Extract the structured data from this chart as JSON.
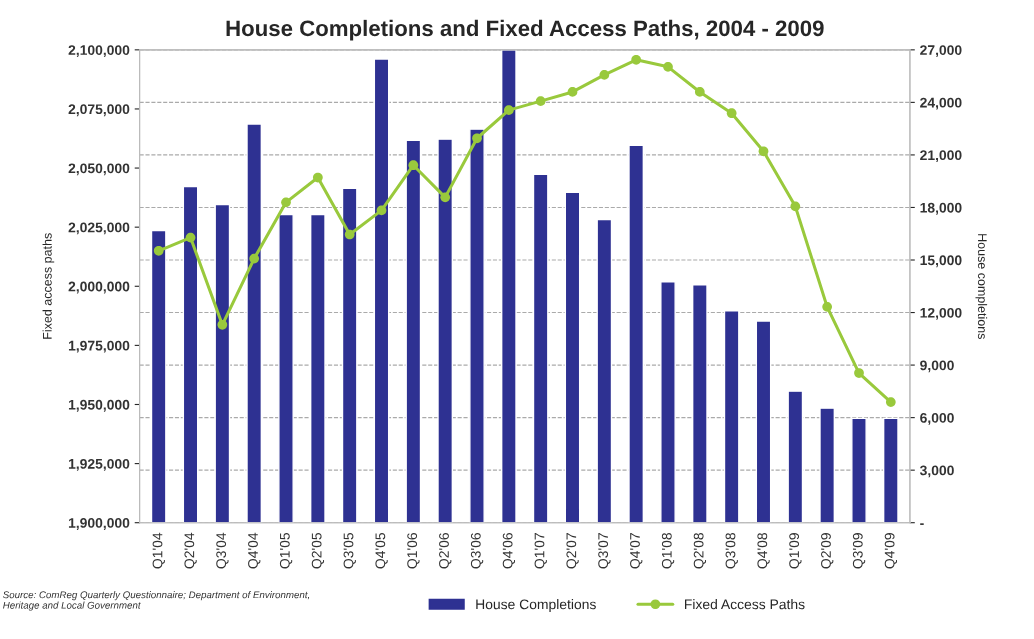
{
  "chart_data": {
    "type": "bar",
    "title": "House Completions and Fixed Access Paths, 2004 - 2009",
    "ylabel": "Fixed access paths",
    "y2label": "House completions",
    "categories": [
      "Q1'04",
      "Q2'04",
      "Q3'04",
      "Q4'04",
      "Q1'05",
      "Q2'05",
      "Q3'05",
      "Q4'05",
      "Q1'06",
      "Q2'06",
      "Q3'06",
      "Q4'06",
      "Q1'07",
      "Q2'07",
      "Q3'07",
      "Q4'07",
      "Q1'08",
      "Q2'08",
      "Q3'08",
      "Q4'08",
      "Q1'09",
      "Q2'09",
      "Q3'09",
      "Q4'09"
    ],
    "series": [
      {
        "name": "House Completions",
        "axis": "y2",
        "color": "#2e3192",
        "values": [
          16680,
          19200,
          18170,
          22760,
          17600,
          17600,
          19090,
          26480,
          21840,
          21900,
          22470,
          27000,
          19890,
          18860,
          17310,
          21550,
          13760,
          13590,
          12100,
          11520,
          7510,
          6540,
          5960,
          5960
        ]
      },
      {
        "name": "Fixed Access Paths",
        "type": "line",
        "axis": "y",
        "color": "#99c93c",
        "marker": "circle",
        "values": [
          2015000,
          2020600,
          1983700,
          2011700,
          2035500,
          2046000,
          2021900,
          2032100,
          2051200,
          2037600,
          2062600,
          2074500,
          2078300,
          2082200,
          2089400,
          2095800,
          2092800,
          2082200,
          2073200,
          2057100,
          2033800,
          1991300,
          1963300,
          1951000
        ]
      }
    ],
    "ylim": [
      1900000,
      2100000
    ],
    "yticks": [
      {
        "value": 1900000,
        "label": "1,900,000"
      },
      {
        "value": 1925000,
        "label": "1,925,000"
      },
      {
        "value": 1950000,
        "label": "1,950,000"
      },
      {
        "value": 1975000,
        "label": "1,975,000"
      },
      {
        "value": 2000000,
        "label": "2,000,000"
      },
      {
        "value": 2025000,
        "label": "2,025,000"
      },
      {
        "value": 2050000,
        "label": "2,050,000"
      },
      {
        "value": 2075000,
        "label": "2,075,000"
      },
      {
        "value": 2100000,
        "label": "2,100,000"
      }
    ],
    "y2lim": [
      0,
      27000
    ],
    "y2ticks": [
      {
        "value": 0,
        "label": "-"
      },
      {
        "value": 3000,
        "label": "3,000"
      },
      {
        "value": 6000,
        "label": "6,000"
      },
      {
        "value": 9000,
        "label": "9,000"
      },
      {
        "value": 12000,
        "label": "12,000"
      },
      {
        "value": 15000,
        "label": "15,000"
      },
      {
        "value": 18000,
        "label": "18,000"
      },
      {
        "value": 21000,
        "label": "21,000"
      },
      {
        "value": 24000,
        "label": "24,000"
      },
      {
        "value": 27000,
        "label": "27,000"
      }
    ],
    "grid": "y",
    "legend": "bottom",
    "annotations": [
      "Source: ComReg Quarterly Questionnaire; Department of Environment, Heritage and Local Government"
    ]
  }
}
